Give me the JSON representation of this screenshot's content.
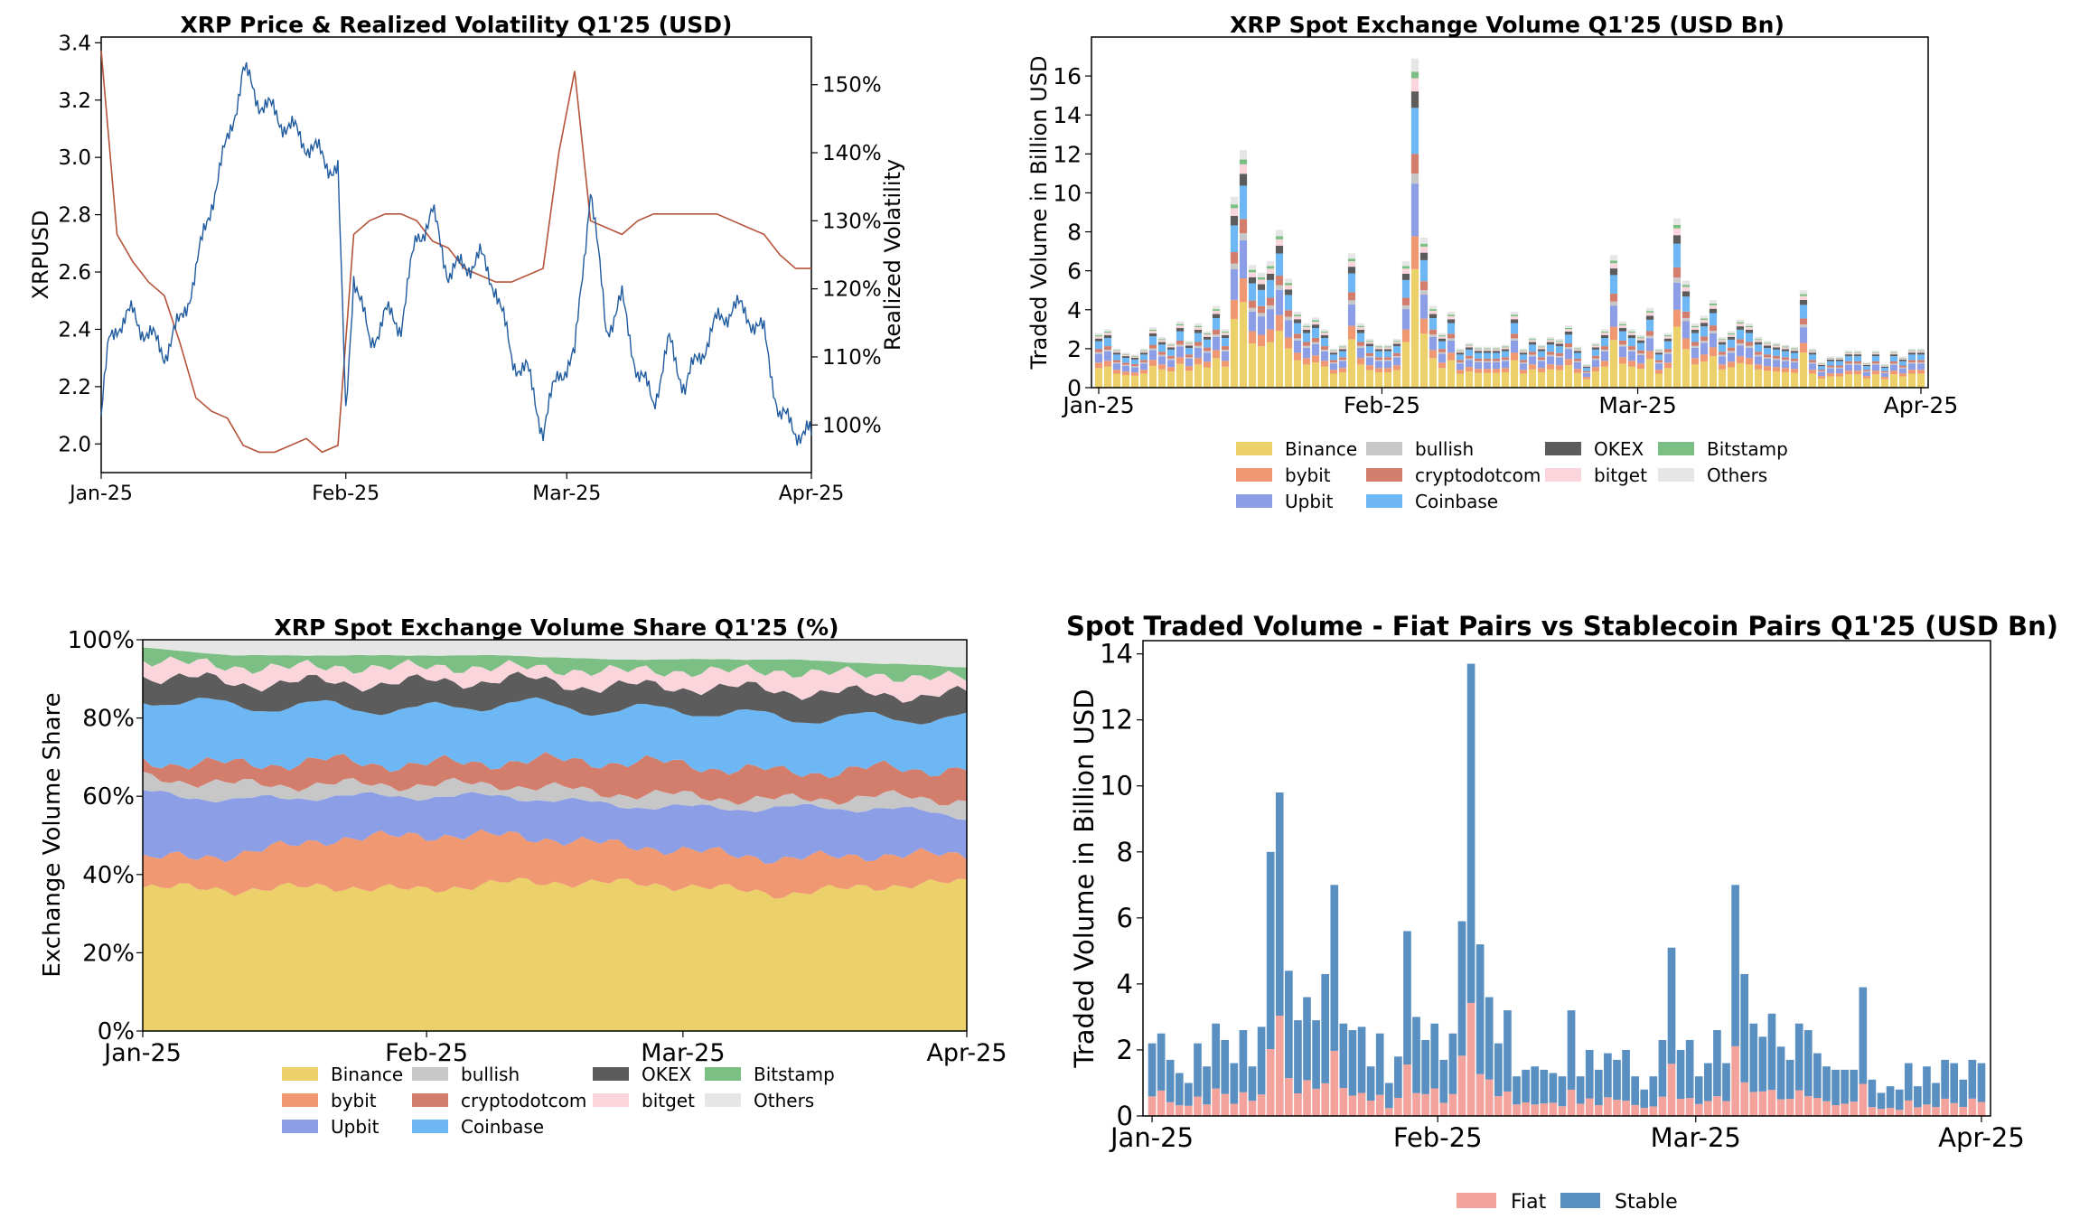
{
  "chart_data": [
    {
      "id": "price_vol",
      "type": "line",
      "title": "XRP Price & Realized Volatility Q1'25 (USD)",
      "xlabel": "",
      "ylabel": "XRPUSD",
      "y2label": "Realized Volatility",
      "x_ticks": [
        "Jan-25",
        "Feb-25",
        "Mar-25",
        "Apr-25"
      ],
      "ylim": [
        1.9,
        3.42
      ],
      "y_ticks": [
        2.0,
        2.2,
        2.4,
        2.6,
        2.8,
        3.0,
        3.2,
        3.4
      ],
      "y2lim": [
        93,
        157
      ],
      "y2_ticks": [
        "100%",
        "110%",
        "120%",
        "130%",
        "140%",
        "150%"
      ],
      "y2_tick_values": [
        100,
        110,
        120,
        130,
        140,
        150
      ],
      "series": [
        {
          "name": "XRPUSD",
          "axis": "left",
          "color": "#1f5b9e",
          "x": [
            0,
            1,
            2,
            4,
            6,
            8,
            10,
            12,
            14,
            16,
            18,
            20,
            22,
            24,
            26,
            28,
            30,
            31,
            32,
            34,
            36,
            38,
            40,
            42,
            44,
            46,
            48,
            50,
            52,
            54,
            56,
            58,
            60,
            62,
            64,
            66,
            68,
            70,
            72,
            74,
            76,
            78,
            80,
            82,
            84,
            86,
            88,
            90
          ],
          "values": [
            2.1,
            2.35,
            2.42,
            2.45,
            2.38,
            2.32,
            2.42,
            2.6,
            2.85,
            3.05,
            3.3,
            3.2,
            3.15,
            3.1,
            3.05,
            3.0,
            2.95,
            2.1,
            2.6,
            2.35,
            2.45,
            2.42,
            2.72,
            2.8,
            2.6,
            2.62,
            2.65,
            2.55,
            2.3,
            2.25,
            2.05,
            2.25,
            2.3,
            2.9,
            2.4,
            2.5,
            2.25,
            2.15,
            2.35,
            2.2,
            2.32,
            2.42,
            2.48,
            2.45,
            2.38,
            2.1,
            2.05,
            2.03
          ]
        },
        {
          "name": "Realized Volatility",
          "axis": "right",
          "color": "#b5533a",
          "x": [
            0,
            2,
            4,
            6,
            8,
            10,
            12,
            14,
            16,
            18,
            20,
            22,
            24,
            26,
            28,
            30,
            32,
            34,
            36,
            38,
            40,
            42,
            44,
            46,
            48,
            50,
            52,
            54,
            56,
            58,
            60,
            62,
            64,
            66,
            68,
            70,
            72,
            74,
            76,
            78,
            80,
            82,
            84,
            86,
            88,
            90
          ],
          "values": [
            155,
            128,
            124,
            121,
            119,
            112,
            104,
            102,
            101,
            97,
            96,
            96,
            97,
            98,
            96,
            97,
            128,
            130,
            131,
            131,
            130,
            127,
            126,
            123,
            122,
            121,
            121,
            122,
            123,
            140,
            152,
            130,
            129,
            128,
            130,
            131,
            131,
            131,
            131,
            131,
            130,
            129,
            128,
            125,
            123,
            123
          ]
        }
      ]
    },
    {
      "id": "exchange_volume",
      "type": "bar",
      "stacked": true,
      "title": "XRP Spot Exchange Volume Q1'25 (USD Bn)",
      "xlabel": "",
      "ylabel": "Traded Volume in Billion USD",
      "x_ticks": [
        "Jan-25",
        "Feb-25",
        "Mar-25",
        "Apr-25"
      ],
      "ylim": [
        0,
        18
      ],
      "y_ticks": [
        0,
        2,
        4,
        6,
        8,
        10,
        12,
        14,
        16
      ],
      "legend": [
        "Binance",
        "bullish",
        "OKEX",
        "Bitstamp",
        "bybit",
        "cryptodotcom",
        "bitget",
        "Others",
        "Upbit",
        "Coinbase"
      ],
      "share_key": [
        "Binance",
        "bybit",
        "Upbit",
        "bullish",
        "cryptodotcom",
        "Coinbase",
        "OKEX",
        "bitget",
        "Bitstamp",
        "Others"
      ],
      "shares": [
        0.36,
        0.1,
        0.16,
        0.03,
        0.06,
        0.14,
        0.05,
        0.04,
        0.02,
        0.04
      ],
      "totals": [
        2.8,
        3.0,
        2.0,
        1.8,
        1.7,
        2.0,
        3.1,
        2.6,
        2.3,
        3.4,
        2.4,
        3.3,
        2.9,
        4.2,
        3.0,
        9.8,
        12.2,
        6.3,
        5.9,
        6.5,
        8.1,
        5.6,
        3.9,
        3.3,
        3.6,
        3.0,
        2.0,
        2.2,
        6.9,
        3.3,
        2.5,
        2.2,
        2.2,
        2.5,
        6.5,
        16.9,
        7.7,
        4.2,
        2.8,
        3.9,
        2.0,
        2.3,
        2.1,
        2.1,
        2.1,
        2.2,
        3.9,
        2.0,
        2.6,
        2.2,
        2.6,
        2.5,
        3.2,
        2.1,
        1.2,
        2.3,
        3.0,
        6.8,
        3.4,
        3.0,
        2.7,
        4.1,
        2.0,
        2.8,
        8.7,
        5.5,
        3.3,
        3.7,
        4.5,
        2.6,
        2.9,
        3.5,
        3.3,
        2.6,
        2.4,
        2.3,
        2.2,
        2.1,
        5.0,
        2.0,
        1.3,
        1.6,
        1.6,
        1.9,
        1.9,
        1.3,
        1.9,
        1.2,
        1.9,
        1.6,
        2.0,
        2.0
      ]
    },
    {
      "id": "volume_share",
      "type": "area",
      "stacked": true,
      "title": "XRP Spot Exchange Volume Share Q1'25 (%)",
      "xlabel": "",
      "ylabel": "Exchange Volume Share",
      "x_ticks": [
        "Jan-25",
        "Feb-25",
        "Mar-25",
        "Apr-25"
      ],
      "ylim": [
        0,
        100
      ],
      "y_ticks": [
        "0%",
        "20%",
        "40%",
        "60%",
        "80%",
        "100%"
      ],
      "y_tick_values": [
        0,
        20,
        40,
        60,
        80,
        100
      ],
      "legend": [
        "Binance",
        "bullish",
        "OKEX",
        "Bitstamp",
        "bybit",
        "cryptodotcom",
        "bitget",
        "Others",
        "Upbit",
        "Coinbase"
      ],
      "x": [
        0,
        10,
        20,
        30,
        40,
        50,
        60,
        70,
        80,
        90
      ],
      "series": [
        {
          "name": "Binance",
          "values": [
            37,
            36,
            37,
            36,
            38,
            38,
            37,
            35,
            37,
            38
          ]
        },
        {
          "name": "bybit",
          "values": [
            7,
            9,
            12,
            14,
            12,
            10,
            9,
            9,
            8,
            7
          ]
        },
        {
          "name": "Upbit",
          "values": [
            17,
            14,
            11,
            10,
            10,
            10,
            11,
            13,
            12,
            10
          ]
        },
        {
          "name": "bullish",
          "values": [
            4,
            4,
            3,
            3,
            3,
            3,
            3,
            2,
            3,
            4
          ]
        },
        {
          "name": "cryptodotcom",
          "values": [
            4,
            5,
            6,
            5,
            6,
            8,
            8,
            7,
            7,
            8
          ]
        },
        {
          "name": "Coinbase",
          "values": [
            16,
            15,
            14,
            14,
            15,
            13,
            14,
            14,
            13,
            13
          ]
        },
        {
          "name": "OKEX",
          "values": [
            6,
            6,
            6,
            7,
            6,
            6,
            6,
            7,
            6,
            6
          ]
        },
        {
          "name": "bitget",
          "values": [
            4,
            4,
            4,
            4,
            3,
            4,
            4,
            5,
            5,
            4
          ]
        },
        {
          "name": "Bitstamp",
          "values": [
            3,
            3,
            3,
            3,
            3,
            3,
            3,
            3,
            3,
            3
          ]
        },
        {
          "name": "Others",
          "values": [
            2,
            4,
            4,
            4,
            4,
            5,
            5,
            5,
            6,
            7
          ]
        }
      ]
    },
    {
      "id": "fiat_vs_stable",
      "type": "bar",
      "stacked": true,
      "title": "Spot Traded Volume - Fiat Pairs vs Stablecoin Pairs Q1'25 (USD Bn)",
      "xlabel": "",
      "ylabel": "Traded Volume in Billion USD",
      "x_ticks": [
        "Jan-25",
        "Feb-25",
        "Mar-25",
        "Apr-25"
      ],
      "ylim": [
        0,
        14.4
      ],
      "y_ticks": [
        0,
        2,
        4,
        6,
        8,
        10,
        12,
        14
      ],
      "legend": [
        "Fiat",
        "Stable"
      ],
      "fiat_share": 0.27,
      "totals": [
        2.2,
        2.5,
        1.7,
        1.3,
        1.0,
        2.2,
        1.5,
        2.8,
        2.3,
        1.6,
        2.6,
        1.5,
        2.7,
        8.0,
        9.8,
        4.4,
        2.9,
        3.6,
        2.9,
        4.3,
        7.0,
        2.8,
        2.6,
        2.7,
        1.5,
        2.5,
        1.0,
        1.8,
        5.6,
        3.0,
        2.3,
        2.8,
        1.7,
        2.5,
        5.9,
        13.7,
        5.2,
        3.6,
        2.2,
        3.2,
        1.2,
        1.4,
        1.5,
        1.4,
        1.3,
        1.2,
        3.2,
        1.2,
        2.0,
        1.4,
        1.9,
        1.7,
        2.0,
        1.2,
        0.8,
        1.2,
        2.3,
        5.1,
        2.0,
        2.3,
        1.2,
        1.6,
        2.6,
        1.6,
        7.0,
        4.3,
        2.8,
        2.4,
        3.1,
        2.1,
        1.7,
        2.8,
        2.6,
        1.9,
        1.5,
        1.4,
        1.4,
        1.4,
        3.9,
        1.1,
        0.7,
        0.9,
        0.8,
        1.6,
        0.9,
        1.5,
        1.0,
        1.7,
        1.6,
        1.1,
        1.7,
        1.6
      ]
    }
  ],
  "colors": {
    "Binance": "#ecd06a",
    "bybit": "#f09872",
    "Upbit": "#8b9ee6",
    "bullish": "#c7c7c7",
    "cryptodotcom": "#d37d6d",
    "Coinbase": "#6db8f4",
    "OKEX": "#5c5c5c",
    "bitget": "#fad6dc",
    "Bitstamp": "#7cbf84",
    "Others": "#e6e6e6",
    "Fiat": "#f3a39c",
    "Stable": "#5a8fc2",
    "price": "#1f5b9e",
    "volatility": "#b5533a"
  }
}
